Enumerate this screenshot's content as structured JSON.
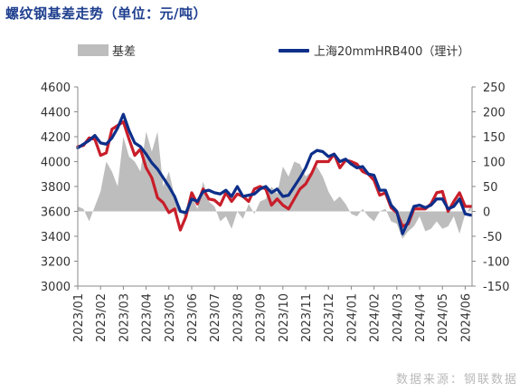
{
  "title": "螺纹钢基差走势（单位：元/吨）",
  "watermark": "数据来源：钢联数据",
  "chart_data": {
    "type": "line",
    "title": "螺纹钢基差走势（单位：元/吨）",
    "x_tick_labels": [
      "2023/01",
      "2023/02",
      "2023/03",
      "2023/04",
      "2023/05",
      "2023/06",
      "2023/07",
      "2023/08",
      "2023/09",
      "2023/10",
      "2023/11",
      "2023/12",
      "2024/01",
      "2024/02",
      "2024/03",
      "2024/04",
      "2024/05",
      "2024/06"
    ],
    "y_left": {
      "ticks": [
        4600,
        4400,
        4200,
        4000,
        3800,
        3600,
        3400,
        3200,
        3000
      ],
      "ylim": [
        3000,
        4600
      ]
    },
    "y_right": {
      "ticks": [
        250,
        200,
        150,
        100,
        50,
        0,
        -50,
        -100,
        -150
      ],
      "ylim": [
        -150,
        250
      ]
    },
    "legend": [
      {
        "name": "基差",
        "color": "#bdbdbd",
        "kind": "bar"
      },
      {
        "name": "上海20mmHRB400（理计）",
        "color": "#0d2f8a",
        "kind": "line"
      }
    ],
    "legend_position": "top",
    "grid": false,
    "series": [
      {
        "name": "上海20mmHRB400（理计）",
        "axis": "left",
        "color": "#0d2f8a",
        "x": [
          0,
          0.25,
          0.5,
          0.75,
          1,
          1.25,
          1.5,
          1.75,
          2,
          2.25,
          2.5,
          2.75,
          3,
          3.25,
          3.5,
          3.75,
          4,
          4.25,
          4.5,
          4.75,
          5,
          5.25,
          5.5,
          5.75,
          6,
          6.25,
          6.5,
          6.75,
          7,
          7.25,
          7.5,
          7.75,
          8,
          8.25,
          8.5,
          8.75,
          9,
          9.25,
          9.5,
          9.75,
          10,
          10.25,
          10.5,
          10.75,
          11,
          11.25,
          11.5,
          11.75,
          12,
          12.25,
          12.5,
          12.75,
          13,
          13.25,
          13.5,
          13.75,
          14,
          14.25,
          14.5,
          14.75,
          15,
          15.25,
          15.5,
          15.75,
          16,
          16.25,
          16.5,
          16.75,
          17,
          17.25
        ],
        "values": [
          4110,
          4140,
          4170,
          4210,
          4150,
          4140,
          4190,
          4270,
          4380,
          4250,
          4150,
          4120,
          4060,
          3990,
          3940,
          3870,
          3800,
          3720,
          3600,
          3590,
          3700,
          3680,
          3760,
          3770,
          3750,
          3740,
          3770,
          3720,
          3800,
          3720,
          3730,
          3740,
          3780,
          3800,
          3750,
          3780,
          3720,
          3730,
          3800,
          3870,
          3950,
          4060,
          4090,
          4080,
          4040,
          4060,
          4000,
          4020,
          3980,
          3950,
          3960,
          3900,
          3890,
          3770,
          3770,
          3650,
          3600,
          3420,
          3520,
          3640,
          3650,
          3630,
          3650,
          3700,
          3700,
          3620,
          3640,
          3700,
          3580,
          3570
        ]
      },
      {
        "name": "",
        "axis": "left",
        "color": "#c81e2a",
        "x": [
          0,
          0.25,
          0.5,
          0.75,
          1,
          1.25,
          1.5,
          1.75,
          2,
          2.25,
          2.5,
          2.75,
          3,
          3.25,
          3.5,
          3.75,
          4,
          4.25,
          4.5,
          4.75,
          5,
          5.25,
          5.5,
          5.75,
          6,
          6.25,
          6.5,
          6.75,
          7,
          7.25,
          7.5,
          7.75,
          8,
          8.25,
          8.5,
          8.75,
          9,
          9.25,
          9.5,
          9.75,
          10,
          10.25,
          10.5,
          10.75,
          11,
          11.25,
          11.5,
          11.75,
          12,
          12.25,
          12.5,
          12.75,
          13,
          13.25,
          13.5,
          13.75,
          14,
          14.25,
          14.5,
          14.75,
          15,
          15.25,
          15.5,
          15.75,
          16,
          16.25,
          16.5,
          16.75,
          17,
          17.25
        ],
        "values": [
          4120,
          4130,
          4190,
          4180,
          4050,
          4070,
          4260,
          4290,
          4320,
          4180,
          4050,
          4100,
          3950,
          3870,
          3710,
          3670,
          3590,
          3620,
          3450,
          3560,
          3750,
          3660,
          3780,
          3700,
          3690,
          3650,
          3750,
          3680,
          3740,
          3720,
          3680,
          3780,
          3800,
          3780,
          3650,
          3700,
          3650,
          3620,
          3700,
          3780,
          3820,
          3900,
          4000,
          4000,
          4000,
          4060,
          3950,
          4010,
          4000,
          3980,
          3920,
          3900,
          3850,
          3730,
          3750,
          3630,
          3590,
          3480,
          3500,
          3620,
          3620,
          3620,
          3660,
          3750,
          3760,
          3600,
          3680,
          3750,
          3640,
          3640
        ]
      },
      {
        "name": "基差",
        "axis": "right",
        "kind": "area",
        "color": "#bdbdbd",
        "x": [
          0,
          0.25,
          0.5,
          0.75,
          1,
          1.25,
          1.5,
          1.75,
          2,
          2.25,
          2.5,
          2.75,
          3,
          3.25,
          3.5,
          3.75,
          4,
          4.25,
          4.5,
          4.75,
          5,
          5.25,
          5.5,
          5.75,
          6,
          6.25,
          6.5,
          6.75,
          7,
          7.25,
          7.5,
          7.75,
          8,
          8.25,
          8.5,
          8.75,
          9,
          9.25,
          9.5,
          9.75,
          10,
          10.25,
          10.5,
          10.75,
          11,
          11.25,
          11.5,
          11.75,
          12,
          12.25,
          12.5,
          12.75,
          13,
          13.25,
          13.5,
          13.75,
          14,
          14.25,
          14.5,
          14.75,
          15,
          15.25,
          15.5,
          15.75,
          16,
          16.25,
          16.5,
          16.75,
          17,
          17.25
        ],
        "values": [
          10,
          5,
          -20,
          10,
          40,
          100,
          80,
          50,
          150,
          110,
          100,
          80,
          160,
          120,
          160,
          50,
          80,
          30,
          10,
          -20,
          30,
          5,
          60,
          20,
          10,
          -20,
          -10,
          -35,
          0,
          -15,
          15,
          -5,
          20,
          25,
          50,
          35,
          90,
          70,
          100,
          95,
          70,
          80,
          90,
          70,
          40,
          20,
          30,
          15,
          -5,
          -10,
          5,
          -10,
          -20,
          0,
          5,
          -20,
          -25,
          -55,
          -40,
          -30,
          -10,
          -40,
          -35,
          -20,
          -35,
          -30,
          -10,
          -45,
          -5,
          10
        ]
      }
    ]
  }
}
